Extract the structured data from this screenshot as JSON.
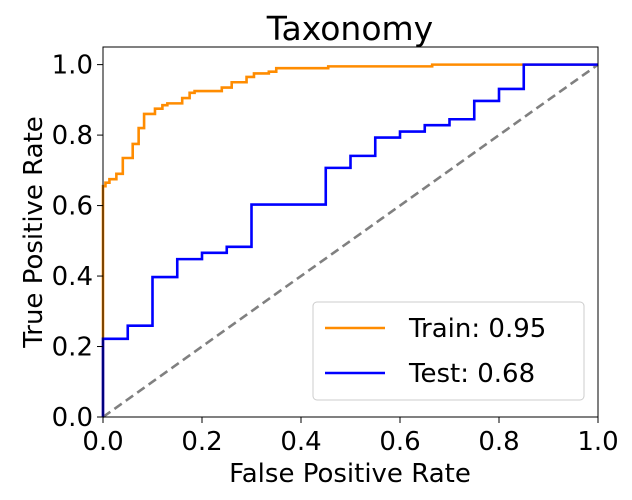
{
  "chart_data": {
    "type": "line",
    "title": "Taxonomy",
    "xlabel": "False Positive Rate",
    "ylabel": "True Positive Rate",
    "xlim": [
      0.0,
      1.0
    ],
    "ylim": [
      0.0,
      1.05
    ],
    "x_ticks": [
      "0.0",
      "0.2",
      "0.4",
      "0.6",
      "0.8",
      "1.0"
    ],
    "y_ticks": [
      "0.0",
      "0.2",
      "0.4",
      "0.6",
      "0.8",
      "1.0"
    ],
    "grid": false,
    "legend_position": "lower-right",
    "series": [
      {
        "name": "Train: 0.95",
        "color": "#ff8c00",
        "x": [
          0.0,
          0.0,
          0.005,
          0.005,
          0.013,
          0.013,
          0.027,
          0.027,
          0.04,
          0.04,
          0.06,
          0.06,
          0.072,
          0.072,
          0.083,
          0.083,
          0.105,
          0.105,
          0.12,
          0.12,
          0.13,
          0.13,
          0.16,
          0.16,
          0.175,
          0.175,
          0.185,
          0.185,
          0.24,
          0.24,
          0.26,
          0.26,
          0.29,
          0.29,
          0.305,
          0.305,
          0.335,
          0.335,
          0.35,
          0.35,
          0.455,
          0.455,
          0.665,
          0.665,
          0.845,
          0.845,
          1.0
        ],
        "y": [
          0.0,
          0.655,
          0.655,
          0.665,
          0.665,
          0.675,
          0.675,
          0.69,
          0.69,
          0.735,
          0.735,
          0.775,
          0.775,
          0.82,
          0.82,
          0.86,
          0.86,
          0.875,
          0.875,
          0.885,
          0.885,
          0.89,
          0.89,
          0.905,
          0.905,
          0.92,
          0.92,
          0.925,
          0.925,
          0.935,
          0.935,
          0.95,
          0.95,
          0.965,
          0.965,
          0.975,
          0.975,
          0.98,
          0.98,
          0.99,
          0.99,
          0.995,
          0.995,
          1.0,
          1.0,
          1.0,
          1.0
        ]
      },
      {
        "name": "Test: 0.68",
        "color": "#0000ff",
        "x": [
          0.0,
          0.0,
          0.05,
          0.05,
          0.1,
          0.1,
          0.15,
          0.15,
          0.2,
          0.2,
          0.25,
          0.25,
          0.3,
          0.3,
          0.45,
          0.45,
          0.5,
          0.5,
          0.55,
          0.55,
          0.6,
          0.6,
          0.65,
          0.65,
          0.7,
          0.7,
          0.75,
          0.75,
          0.8,
          0.8,
          0.85,
          0.85,
          1.0
        ],
        "y": [
          0.0,
          0.222,
          0.222,
          0.259,
          0.259,
          0.397,
          0.397,
          0.448,
          0.448,
          0.466,
          0.466,
          0.483,
          0.483,
          0.603,
          0.603,
          0.707,
          0.707,
          0.741,
          0.741,
          0.793,
          0.793,
          0.81,
          0.81,
          0.828,
          0.828,
          0.845,
          0.845,
          0.897,
          0.897,
          0.931,
          0.931,
          1.0,
          1.0
        ]
      }
    ],
    "reference_line": {
      "color": "#808080",
      "x": [
        0.0,
        1.0
      ],
      "y": [
        0.0,
        1.0
      ]
    }
  }
}
